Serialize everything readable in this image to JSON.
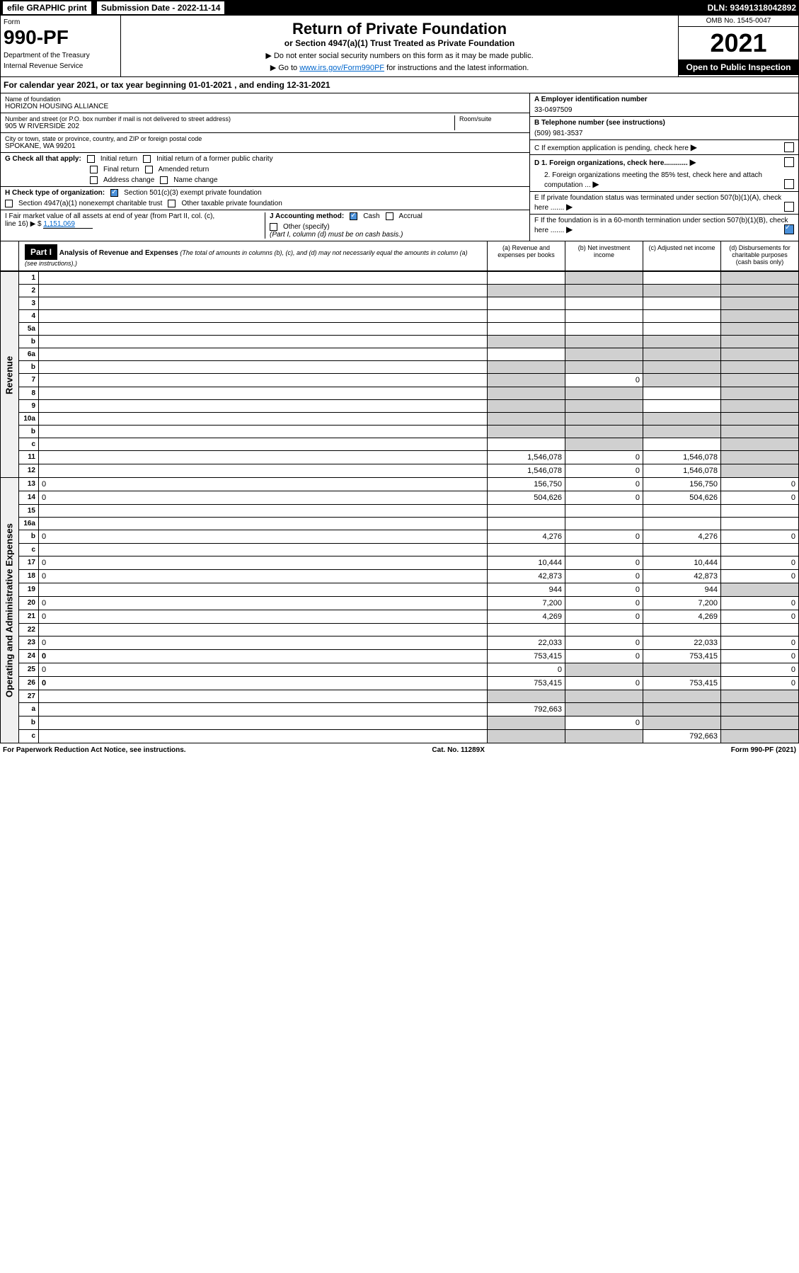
{
  "topbar": {
    "efile": "efile GRAPHIC print",
    "submission": "Submission Date - 2022-11-14",
    "dln": "DLN: 93491318042892"
  },
  "header": {
    "form_label": "Form",
    "form_number": "990-PF",
    "dept": "Department of the Treasury",
    "irs": "Internal Revenue Service",
    "title": "Return of Private Foundation",
    "subtitle": "or Section 4947(a)(1) Trust Treated as Private Foundation",
    "instr1": "▶ Do not enter social security numbers on this form as it may be made public.",
    "instr2_pre": "▶ Go to ",
    "instr2_link": "www.irs.gov/Form990PF",
    "instr2_post": " for instructions and the latest information.",
    "omb": "OMB No. 1545-0047",
    "year": "2021",
    "open": "Open to Public Inspection"
  },
  "calyear": "For calendar year 2021, or tax year beginning 01-01-2021           , and ending 12-31-2021",
  "info": {
    "name_label": "Name of foundation",
    "name": "HORIZON HOUSING ALLIANCE",
    "addr_label": "Number and street (or P.O. box number if mail is not delivered to street address)",
    "addr": "905 W RIVERSIDE 202",
    "room_label": "Room/suite",
    "city_label": "City or town, state or province, country, and ZIP or foreign postal code",
    "city": "SPOKANE, WA  99201",
    "ein_label": "A Employer identification number",
    "ein": "33-0497509",
    "phone_label": "B Telephone number (see instructions)",
    "phone": "(509) 981-3537",
    "c_label": "C If exemption application is pending, check here",
    "d1_label": "D 1. Foreign organizations, check here............",
    "d2_label": "2. Foreign organizations meeting the 85% test, check here and attach computation ...",
    "e_label": "E  If private foundation status was terminated under section 507(b)(1)(A), check here .......",
    "f_label": "F  If the foundation is in a 60-month termination under section 507(b)(1)(B), check here .......",
    "g_label": "G Check all that apply:",
    "g_opts": [
      "Initial return",
      "Initial return of a former public charity",
      "Final return",
      "Amended return",
      "Address change",
      "Name change"
    ],
    "h_label": "H Check type of organization:",
    "h_opt1": "Section 501(c)(3) exempt private foundation",
    "h_opt2": "Section 4947(a)(1) nonexempt charitable trust",
    "h_opt3": "Other taxable private foundation",
    "i_label": "I Fair market value of all assets at end of year (from Part II, col. (c),",
    "i_line": "line 16) ▶ $",
    "i_val": "1,151,069",
    "j_label": "J Accounting method:",
    "j_cash": "Cash",
    "j_accrual": "Accrual",
    "j_other": "Other (specify)",
    "j_note": "(Part I, column (d) must be on cash basis.)"
  },
  "part1": {
    "label": "Part I",
    "title": "Analysis of Revenue and Expenses",
    "note": "(The total of amounts in columns (b), (c), and (d) may not necessarily equal the amounts in column (a) (see instructions).)",
    "col_a": "(a)    Revenue and expenses per books",
    "col_b": "(b)    Net investment income",
    "col_c": "(c)    Adjusted net income",
    "col_d": "(d)    Disbursements for charitable purposes (cash basis only)"
  },
  "sides": {
    "revenue": "Revenue",
    "expenses": "Operating and Administrative Expenses"
  },
  "rows": [
    {
      "n": "1",
      "d": "",
      "a": "",
      "b": "",
      "c": "",
      "sb": true,
      "sd": true
    },
    {
      "n": "2",
      "d": "",
      "a": "",
      "b": "",
      "c": "",
      "sa": true,
      "sb": true,
      "sc": true,
      "sd": true,
      "bold_not": true
    },
    {
      "n": "3",
      "d": "",
      "a": "",
      "b": "",
      "c": "",
      "sd": true
    },
    {
      "n": "4",
      "d": "",
      "a": "",
      "b": "",
      "c": "",
      "sd": true
    },
    {
      "n": "5a",
      "d": "",
      "a": "",
      "b": "",
      "c": "",
      "sd": true
    },
    {
      "n": "b",
      "d": "",
      "a": "",
      "b": "",
      "c": "",
      "sa": true,
      "sb": true,
      "sc": true,
      "sd": true
    },
    {
      "n": "6a",
      "d": "",
      "a": "",
      "b": "",
      "c": "",
      "sb": true,
      "sc": true,
      "sd": true
    },
    {
      "n": "b",
      "d": "",
      "a": "",
      "b": "",
      "c": "",
      "sa": true,
      "sb": true,
      "sc": true,
      "sd": true
    },
    {
      "n": "7",
      "d": "",
      "a": "",
      "b": "0",
      "c": "",
      "sa": true,
      "sc": true,
      "sd": true
    },
    {
      "n": "8",
      "d": "",
      "a": "",
      "b": "",
      "c": "",
      "sa": true,
      "sb": true,
      "sd": true
    },
    {
      "n": "9",
      "d": "",
      "a": "",
      "b": "",
      "c": "",
      "sa": true,
      "sb": true,
      "sd": true
    },
    {
      "n": "10a",
      "d": "",
      "a": "",
      "b": "",
      "c": "",
      "sa": true,
      "sb": true,
      "sc": true,
      "sd": true
    },
    {
      "n": "b",
      "d": "",
      "a": "",
      "b": "",
      "c": "",
      "sa": true,
      "sb": true,
      "sc": true,
      "sd": true
    },
    {
      "n": "c",
      "d": "",
      "a": "",
      "b": "",
      "c": "",
      "sb": true,
      "sd": true
    },
    {
      "n": "11",
      "d": "",
      "a": "1,546,078",
      "b": "0",
      "c": "1,546,078",
      "sd": true
    },
    {
      "n": "12",
      "d": "",
      "a": "1,546,078",
      "b": "0",
      "c": "1,546,078",
      "sd": true,
      "bold": true
    },
    {
      "n": "13",
      "d": "0",
      "a": "156,750",
      "b": "0",
      "c": "156,750"
    },
    {
      "n": "14",
      "d": "0",
      "a": "504,626",
      "b": "0",
      "c": "504,626"
    },
    {
      "n": "15",
      "d": "",
      "a": "",
      "b": "",
      "c": ""
    },
    {
      "n": "16a",
      "d": "",
      "a": "",
      "b": "",
      "c": ""
    },
    {
      "n": "b",
      "d": "0",
      "a": "4,276",
      "b": "0",
      "c": "4,276"
    },
    {
      "n": "c",
      "d": "",
      "a": "",
      "b": "",
      "c": ""
    },
    {
      "n": "17",
      "d": "0",
      "a": "10,444",
      "b": "0",
      "c": "10,444"
    },
    {
      "n": "18",
      "d": "0",
      "a": "42,873",
      "b": "0",
      "c": "42,873"
    },
    {
      "n": "19",
      "d": "",
      "a": "944",
      "b": "0",
      "c": "944",
      "sd": true
    },
    {
      "n": "20",
      "d": "0",
      "a": "7,200",
      "b": "0",
      "c": "7,200"
    },
    {
      "n": "21",
      "d": "0",
      "a": "4,269",
      "b": "0",
      "c": "4,269"
    },
    {
      "n": "22",
      "d": "",
      "a": "",
      "b": "",
      "c": ""
    },
    {
      "n": "23",
      "d": "0",
      "a": "22,033",
      "b": "0",
      "c": "22,033"
    },
    {
      "n": "24",
      "d": "0",
      "a": "753,415",
      "b": "0",
      "c": "753,415",
      "bold": true
    },
    {
      "n": "25",
      "d": "0",
      "a": "0",
      "b": "",
      "c": "",
      "sb": true,
      "sc": true
    },
    {
      "n": "26",
      "d": "0",
      "a": "753,415",
      "b": "0",
      "c": "753,415",
      "bold": true
    },
    {
      "n": "27",
      "d": "",
      "a": "",
      "b": "",
      "c": "",
      "sa": true,
      "sb": true,
      "sc": true,
      "sd": true
    },
    {
      "n": "a",
      "d": "",
      "a": "792,663",
      "b": "",
      "c": "",
      "sb": true,
      "sc": true,
      "sd": true,
      "bold": true
    },
    {
      "n": "b",
      "d": "",
      "a": "",
      "b": "0",
      "c": "",
      "sa": true,
      "sc": true,
      "sd": true,
      "bold": true
    },
    {
      "n": "c",
      "d": "",
      "a": "",
      "b": "",
      "c": "792,663",
      "sa": true,
      "sb": true,
      "sd": true,
      "bold": true
    }
  ],
  "footer": {
    "left": "For Paperwork Reduction Act Notice, see instructions.",
    "center": "Cat. No. 11289X",
    "right": "Form 990-PF (2021)"
  }
}
